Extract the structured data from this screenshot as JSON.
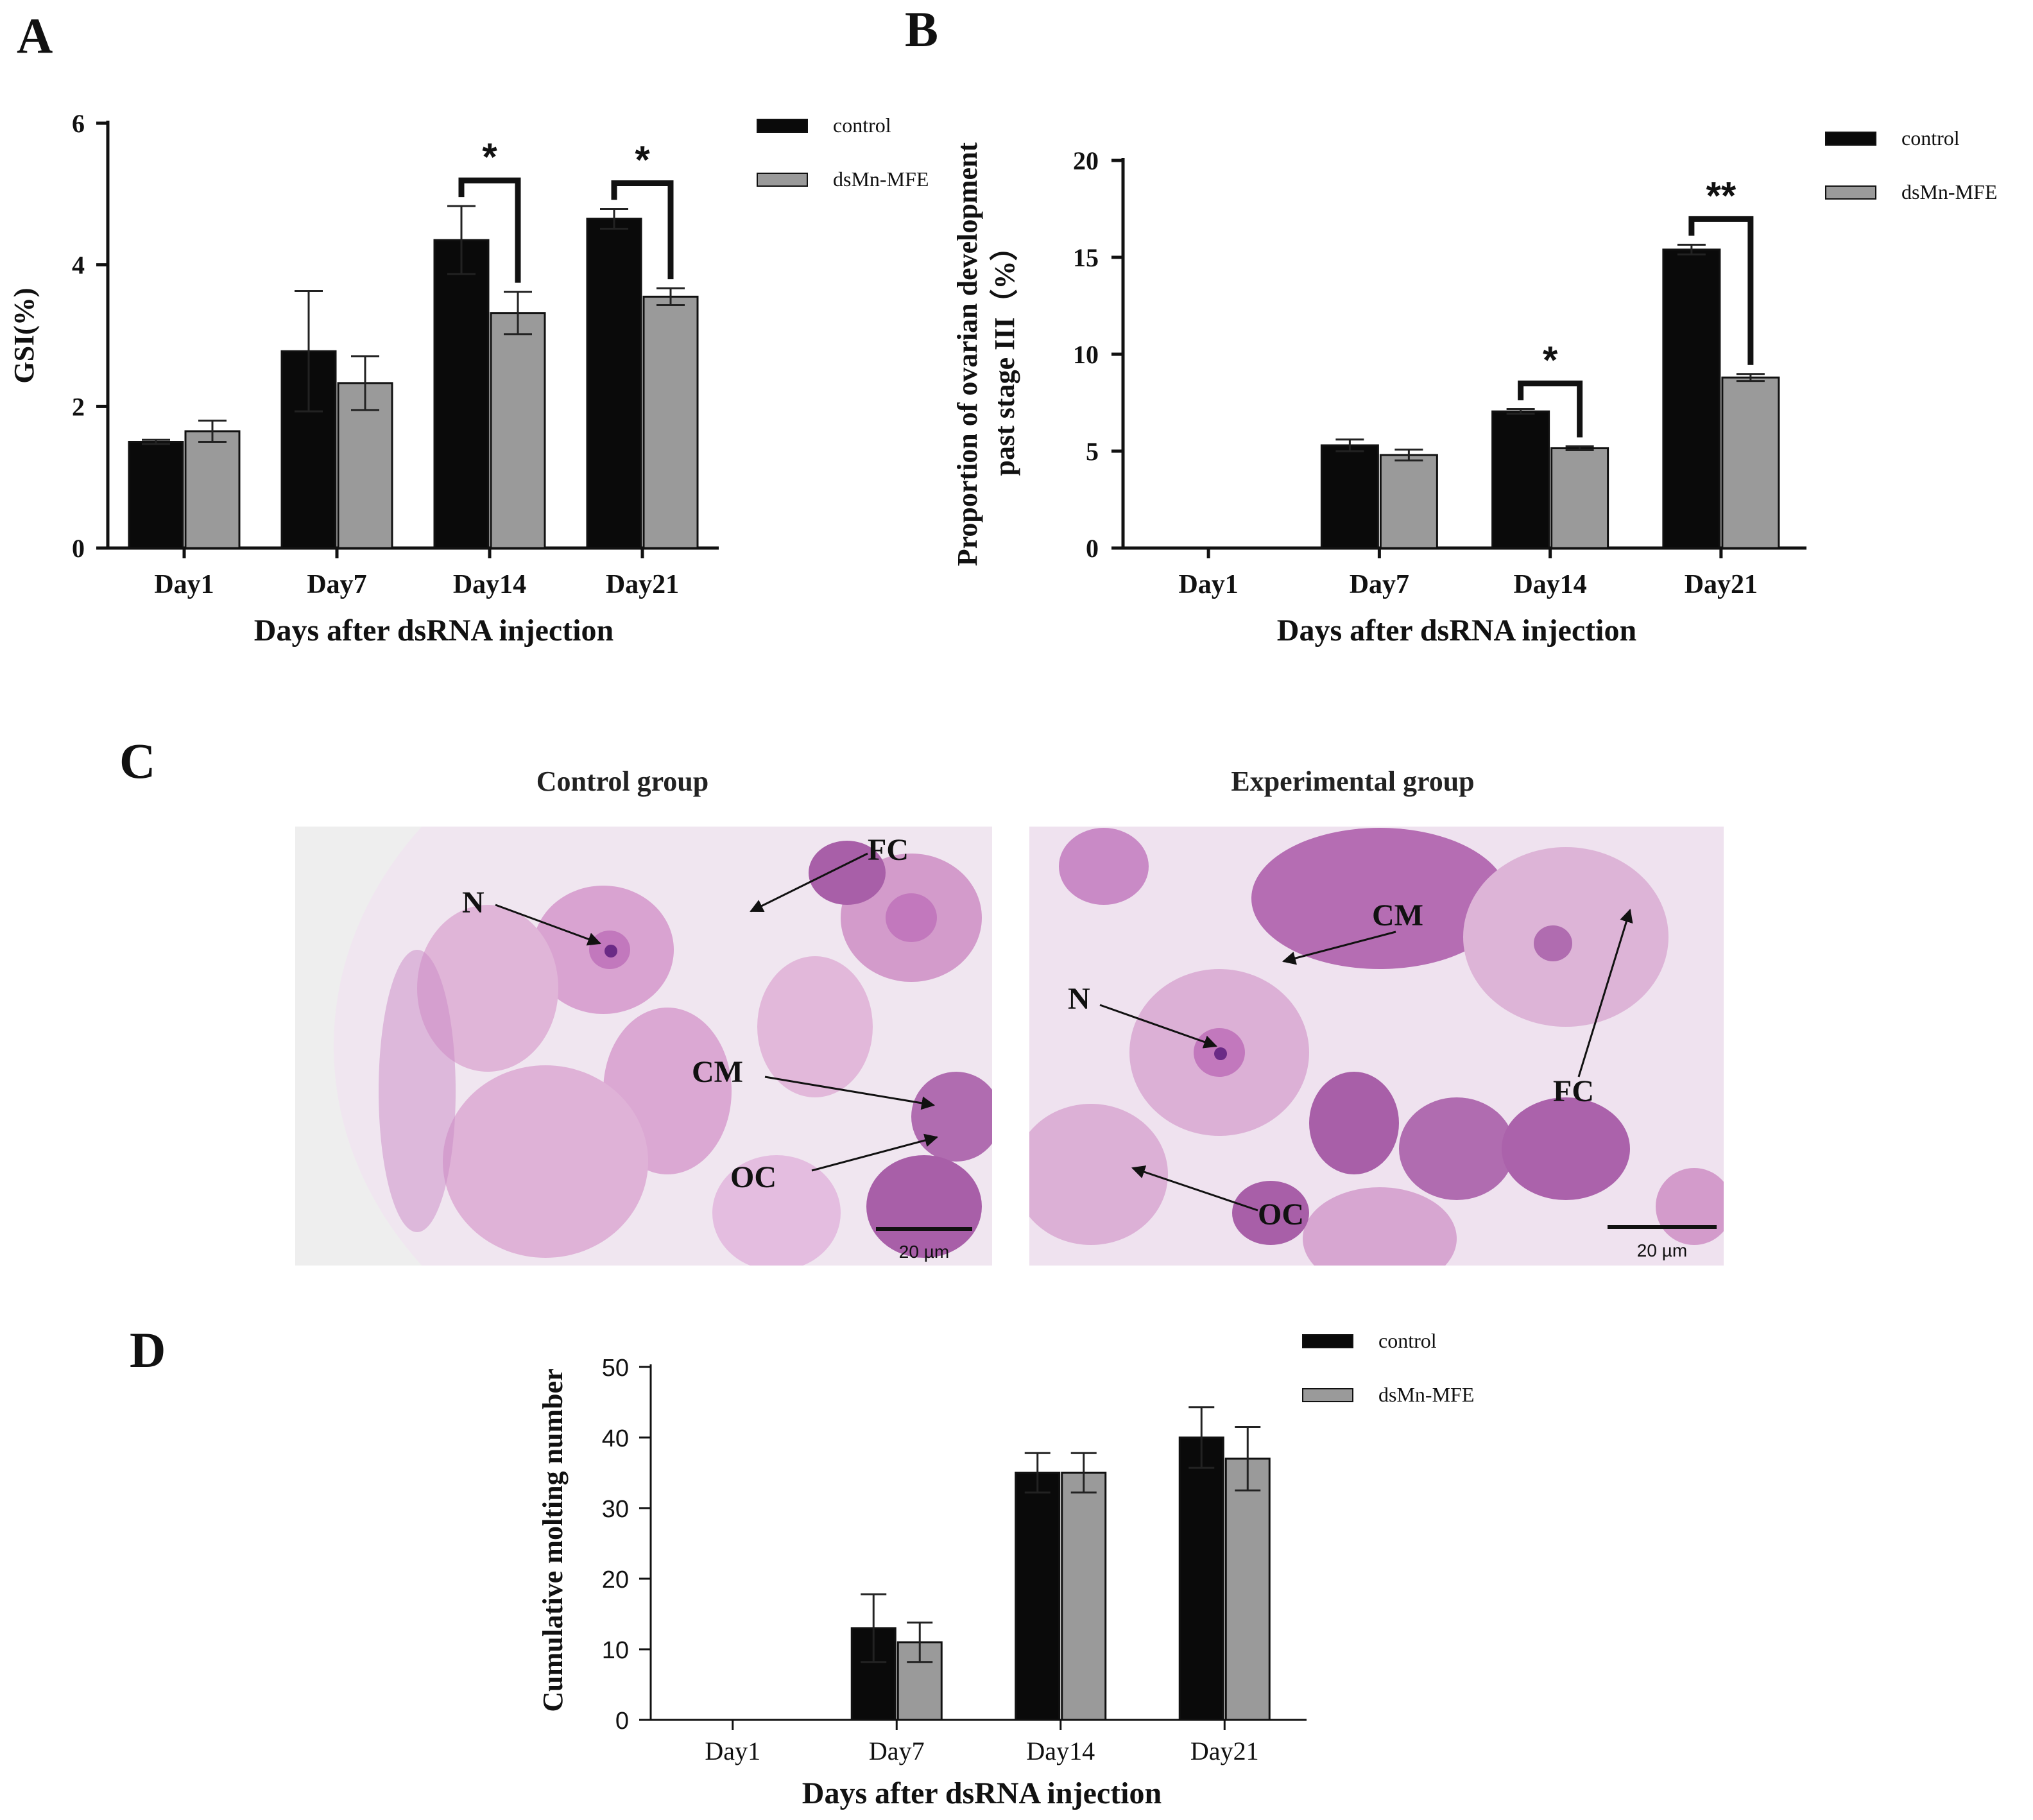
{
  "colors": {
    "control": "#0a0a0a",
    "treatment": "#9a9a9a",
    "axis": "#111111",
    "tissue_bg": "#f3ecf3",
    "tissue_cell": "#d9a3d1",
    "tissue_dark": "#b46fb5",
    "nucleus": "#6b2a86"
  },
  "panels": {
    "A": {
      "letter": "A"
    },
    "B": {
      "letter": "B"
    },
    "C": {
      "letter": "C",
      "left_title": "Control group",
      "right_title": "Experimental group",
      "left_labels": [
        "N",
        "FC",
        "CM",
        "OC"
      ],
      "right_labels": [
        "CM",
        "N",
        "FC",
        "OC"
      ],
      "scale_text": "20 µm"
    },
    "D": {
      "letter": "D"
    }
  },
  "chart_data": [
    {
      "id": "A",
      "type": "bar",
      "categories": [
        "Day1",
        "Day7",
        "Day14",
        "Day21"
      ],
      "series": [
        {
          "name": "control",
          "values": [
            1.5,
            2.78,
            4.35,
            4.65
          ],
          "errors": [
            0.03,
            0.85,
            0.48,
            0.14
          ]
        },
        {
          "name": "dsMn-MFE",
          "values": [
            1.65,
            2.33,
            3.32,
            3.55
          ],
          "errors": [
            0.15,
            0.38,
            0.3,
            0.12
          ]
        }
      ],
      "xlabel": "Days after dsRNA injection",
      "ylabel": "GSI(%)",
      "ylim": [
        0,
        6
      ],
      "yticks": [
        0,
        2,
        4,
        6
      ],
      "legend": "top-right",
      "significance": [
        {
          "category": "Day14",
          "label": "*"
        },
        {
          "category": "Day21",
          "label": "*"
        }
      ]
    },
    {
      "id": "B",
      "type": "bar",
      "categories": [
        "Day1",
        "Day7",
        "Day14",
        "Day21"
      ],
      "series": [
        {
          "name": "control",
          "values": [
            0,
            5.3,
            7.05,
            15.4
          ],
          "errors": [
            0,
            0.3,
            0.12,
            0.25
          ]
        },
        {
          "name": "dsMn-MFE",
          "values": [
            0,
            4.8,
            5.15,
            8.8
          ],
          "errors": [
            0,
            0.28,
            0.1,
            0.18
          ]
        }
      ],
      "xlabel": "Days after dsRNA injection",
      "ylabel": "Proportion of ovarian development past stage III（%）",
      "ylabel_lines": [
        "Proportion of ovarian development",
        "past stage III（%）"
      ],
      "ylim": [
        0,
        20
      ],
      "yticks": [
        0,
        5,
        10,
        15,
        20
      ],
      "legend": "top-right",
      "significance": [
        {
          "category": "Day14",
          "label": "*"
        },
        {
          "category": "Day21",
          "label": "**"
        }
      ]
    },
    {
      "id": "D",
      "type": "bar",
      "categories": [
        "Day1",
        "Day7",
        "Day14",
        "Day21"
      ],
      "series": [
        {
          "name": "control",
          "values": [
            0,
            13,
            35,
            40
          ],
          "errors": [
            0,
            4.8,
            2.8,
            4.3
          ]
        },
        {
          "name": "dsMn-MFE",
          "values": [
            0,
            11,
            35,
            37
          ],
          "errors": [
            0,
            2.8,
            2.8,
            4.5
          ]
        }
      ],
      "xlabel": "Days after dsRNA injection",
      "ylabel": "Cumulative molting number",
      "ylim": [
        0,
        50
      ],
      "yticks": [
        0,
        10,
        20,
        30,
        40,
        50
      ],
      "legend": "top-right",
      "significance": []
    }
  ]
}
